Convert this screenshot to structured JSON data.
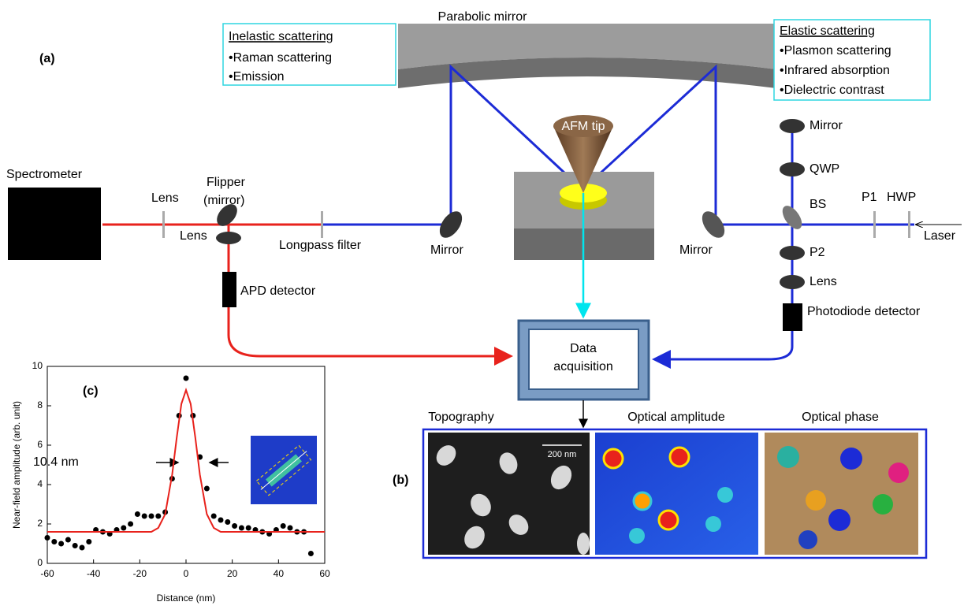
{
  "panel_labels": {
    "a": "(a)",
    "b": "(b)"
  },
  "parabolic_mirror": "Parabolic mirror",
  "afm_tip": "AFM tip",
  "inelastic": {
    "title": "Inelastic scattering",
    "items": [
      "•Raman scattering",
      "•Emission"
    ]
  },
  "elastic": {
    "title": "Elastic scattering",
    "items": [
      "•Plasmon scattering",
      "•Infrared absorption",
      "•Dielectric contrast"
    ]
  },
  "components": {
    "spectrometer": "Spectrometer",
    "lens_left": "Lens",
    "flipper": [
      "Flipper",
      "(mirror)"
    ],
    "lens_below": "Lens",
    "longpass": "Longpass filter",
    "mirror_left": "Mirror",
    "apd": "APD detector",
    "mirror_right": "Mirror",
    "mirror_top": "Mirror",
    "qwp": "QWP",
    "bs": "BS",
    "p1": "P1",
    "hwp": "HWP",
    "laser": "Laser",
    "p2": "P2",
    "lens_right": "Lens",
    "photodiode": "Photodiode detector"
  },
  "data_acquisition": [
    "Data",
    "acquisition"
  ],
  "images": {
    "titles": [
      "Topography",
      "Optical amplitude",
      "Optical phase"
    ],
    "scale_bar": "200 nm"
  },
  "chart_data": {
    "type": "scatter",
    "panel": "(c)",
    "xlabel": "Distance (nm)",
    "ylabel": "Near-field amplitude (arb. unit)",
    "annotation": "10.4 nm",
    "xlim": [
      -60,
      60
    ],
    "ylim": [
      0,
      10
    ],
    "xticks": [
      -60,
      -40,
      -20,
      0,
      20,
      40,
      60
    ],
    "yticks": [
      0,
      2,
      4,
      6,
      8,
      10
    ],
    "series": [
      {
        "type": "scatter",
        "color": "#000000",
        "x": [
          -60,
          -57,
          -54,
          -51,
          -48,
          -45,
          -42,
          -39,
          -36,
          -33,
          -30,
          -27,
          -24,
          -21,
          -18,
          -15,
          -12,
          -9,
          -6,
          -3,
          0,
          3,
          6,
          9,
          12,
          15,
          18,
          21,
          24,
          27,
          30,
          33,
          36,
          39,
          42,
          45,
          48,
          51,
          54
        ],
        "values": [
          1.3,
          1.1,
          1.0,
          1.2,
          0.9,
          0.8,
          1.1,
          1.7,
          1.6,
          1.5,
          1.7,
          1.8,
          2.0,
          2.5,
          2.4,
          2.4,
          2.4,
          2.6,
          4.3,
          7.5,
          9.4,
          7.5,
          5.4,
          3.8,
          2.4,
          2.2,
          2.1,
          1.9,
          1.8,
          1.8,
          1.7,
          1.6,
          1.5,
          1.7,
          1.9,
          1.8,
          1.6,
          1.6,
          0.5
        ]
      },
      {
        "type": "line",
        "color": "#e8221c",
        "x": [
          -60,
          -20,
          -15,
          -12,
          -9,
          -6,
          -4,
          -2,
          0,
          2,
          4,
          6,
          9,
          12,
          15,
          20,
          60
        ],
        "values": [
          1.6,
          1.6,
          1.6,
          1.8,
          2.5,
          4.5,
          6.4,
          8.1,
          8.8,
          8.1,
          6.4,
          4.5,
          2.5,
          1.8,
          1.6,
          1.6,
          1.6
        ]
      }
    ]
  }
}
